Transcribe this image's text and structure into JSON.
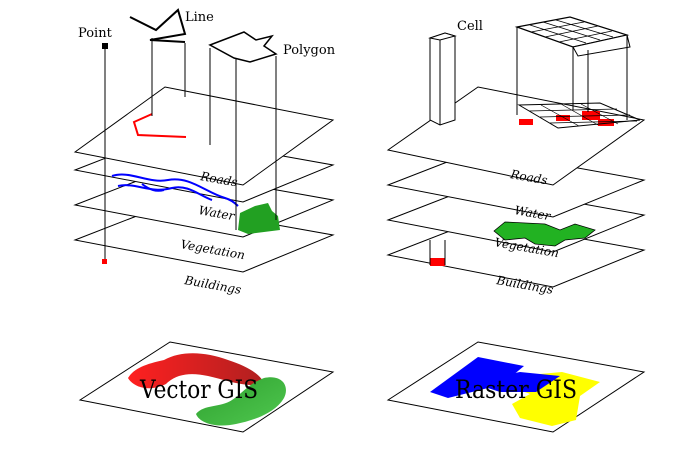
{
  "vector": {
    "labels": {
      "point": "Point",
      "line": "Line",
      "polygon": "Polygon"
    },
    "layers": [
      "Roads",
      "Water",
      "Vegetation",
      "Buildings"
    ],
    "composite_title": "Vector GIS"
  },
  "raster": {
    "labels": {
      "cell": "Cell"
    },
    "layers": [
      "Roads",
      "Water",
      "Vegetation",
      "Buildings"
    ],
    "composite_title": "Raster GIS"
  },
  "colors": {
    "roads": "#ff0000",
    "water": "#0000ff",
    "vegetation": "#00a000",
    "buildings": "#ff0000",
    "raster_vegetation": "#00c000",
    "raster_blue": "#0000ff",
    "raster_yellow": "#ffff00",
    "outline": "#000000"
  }
}
